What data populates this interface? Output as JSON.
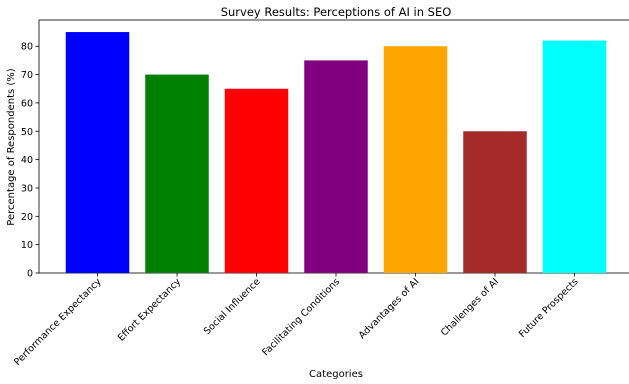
{
  "chart_data": {
    "type": "bar",
    "title": "Survey Results: Perceptions of AI in SEO",
    "xlabel": "Categories",
    "ylabel": "Percentage of Respondents (%)",
    "categories": [
      "Performance Expectancy",
      "Effort Expectancy",
      "Social Influence",
      "Facilitating Conditions",
      "Advantages of AI",
      "Challenges of AI",
      "Future Prospects"
    ],
    "values": [
      85,
      70,
      65,
      75,
      80,
      50,
      82
    ],
    "colors": [
      "#0000ff",
      "#008000",
      "#ff0000",
      "#800080",
      "#ffa500",
      "#a52a2a",
      "#00ffff"
    ],
    "ylim": [
      0,
      89.25
    ],
    "yticks": [
      0,
      10,
      20,
      30,
      40,
      50,
      60,
      70,
      80
    ],
    "grid": false,
    "legend": "none"
  }
}
